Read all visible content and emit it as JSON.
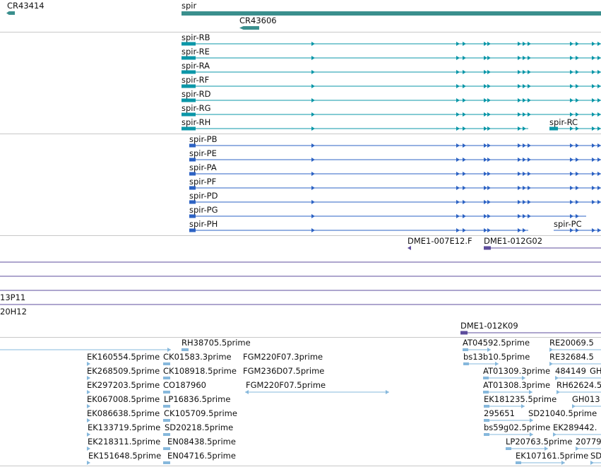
{
  "colors": {
    "separator": "#c8c8c8",
    "gene": "#3a8f8d",
    "transcript": "#0b97a8",
    "protein": "#2d63c4",
    "clone": "#5d4c9c",
    "est": "#86b8dc",
    "text": "#111111"
  },
  "genes": {
    "left_label": "CR43414",
    "main_label": "spir",
    "sub_label": "CR43606"
  },
  "transcripts": {
    "labels": [
      "spir-RB",
      "spir-RE",
      "spir-RA",
      "spir-RF",
      "spir-RD",
      "spir-RG",
      "spir-RH"
    ],
    "extra_label": "spir-RC"
  },
  "proteins": {
    "labels": [
      "spir-PB",
      "spir-PE",
      "spir-PA",
      "spir-PF",
      "spir-PD",
      "spir-PG",
      "spir-PH"
    ],
    "extra_label": "spir-PC"
  },
  "clones": {
    "row1": [
      "DME1-007E12.F",
      "DME1-012G02"
    ],
    "partial1": "13P11",
    "partial2": "20H12",
    "row2": "DME1-012K09"
  },
  "ests": {
    "col_a": [
      "EK160554.5prime",
      "EK268509.5prime",
      "EK297203.5prime",
      "EK067008.5prime",
      "EK086638.5prime",
      "EK133719.5prime",
      "EK218311.5prime",
      "EK151648.5prime"
    ],
    "col_b_top": "RH38705.5prime",
    "col_b": [
      "CK01583.3prime",
      "CK108918.5prime",
      "CO187960",
      "LP16836.5prime",
      "CK105709.5prime",
      "SD20218.5prime",
      "EN08438.5prime",
      "EN04716.5prime"
    ],
    "col_c": [
      "FGM220F07.3prime",
      "FGM236D07.5prime",
      "FGM220F07.5prime"
    ],
    "col_d_top": "AT04592.5prime",
    "col_d": [
      "bs13b10.5prime",
      "AT01309.3prime",
      "AT01308.3prime",
      "EK181235.5prime",
      "295651",
      "bs59g02.5prime",
      "LP20763.5prime",
      "EK107161.5prime"
    ],
    "col_e": [
      "RE20069.5",
      "RE32684.5",
      "484149",
      "GH",
      "RH62624.5",
      "GH013",
      "SD21040.5prime",
      "EK289442.",
      "20779",
      "SD"
    ]
  }
}
